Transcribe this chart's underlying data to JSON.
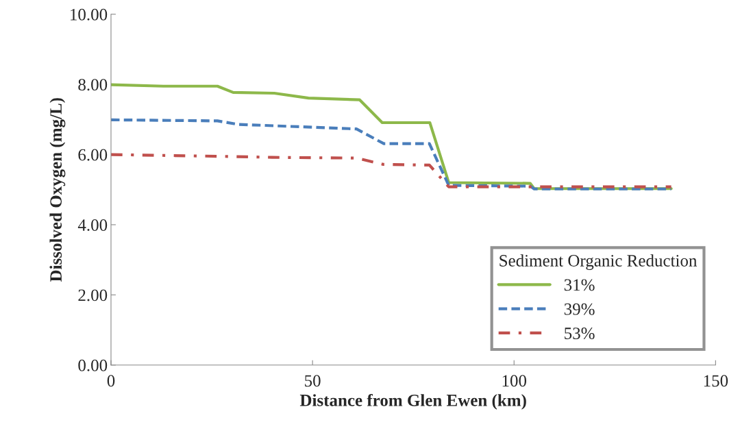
{
  "chart_data": {
    "type": "line",
    "xlabel": "Distance from Glen Ewen (km)",
    "ylabel": "Dissolved Oxygen (mg/L)",
    "legend_title": "Sediment Organic Reduction",
    "xlim": [
      0,
      150
    ],
    "xticks": [
      0,
      50,
      100,
      150
    ],
    "ylim": [
      0,
      10
    ],
    "yticks": [
      {
        "value": 0,
        "label": "0.00"
      },
      {
        "value": 2,
        "label": "2.00"
      },
      {
        "value": 4,
        "label": "4.00"
      },
      {
        "value": 6,
        "label": "6.00"
      },
      {
        "value": 8,
        "label": "8.00"
      },
      {
        "value": 10,
        "label": "10.00"
      }
    ],
    "grid": false,
    "legend": "bottom right",
    "marker": "none",
    "series": [
      {
        "name": "31%",
        "color": "#8db84a",
        "line_style": "solid",
        "x": [
          0,
          13,
          26.4,
          30.3,
          40.5,
          49,
          61.7,
          67.3,
          79.1,
          83.8,
          104,
          105,
          139
        ],
        "values": [
          7.99,
          7.95,
          7.95,
          7.77,
          7.75,
          7.61,
          7.56,
          6.91,
          6.91,
          5.2,
          5.18,
          5.03,
          5.03
        ]
      },
      {
        "name": "39%",
        "color": "#4a7ebb",
        "line_style": "dashed",
        "x": [
          0,
          26.4,
          31.6,
          60.9,
          67.7,
          79,
          83.8,
          104,
          105,
          139
        ],
        "values": [
          6.99,
          6.96,
          6.86,
          6.73,
          6.31,
          6.31,
          5.12,
          5.1,
          5.02,
          5.02
        ]
      },
      {
        "name": "53%",
        "color": "#c0504d",
        "line_style": "dashdot",
        "x": [
          0,
          27,
          40,
          61,
          67.5,
          79,
          83.8,
          105,
          139
        ],
        "values": [
          6.0,
          5.95,
          5.92,
          5.9,
          5.72,
          5.7,
          5.08,
          5.08,
          5.08
        ]
      }
    ]
  }
}
